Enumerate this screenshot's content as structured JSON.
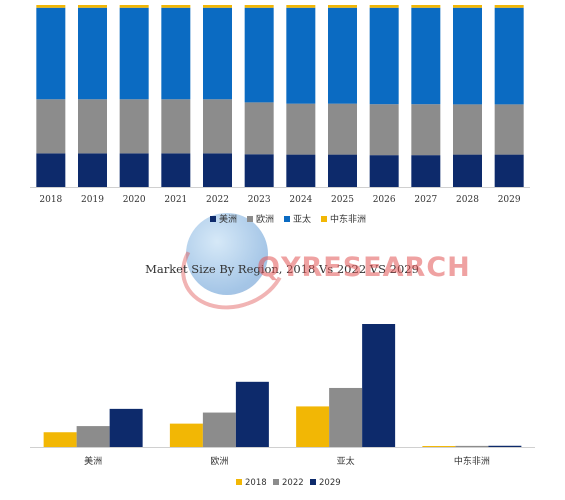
{
  "chart_data": [
    {
      "type": "bar",
      "stacked": true,
      "percent": true,
      "categories": [
        "2018",
        "2019",
        "2020",
        "2021",
        "2022",
        "2023",
        "2024",
        "2025",
        "2026",
        "2027",
        "2028",
        "2029"
      ],
      "series": [
        {
          "name": "美洲",
          "color": "#0d2a6b",
          "values": [
            18.5,
            18.5,
            18.5,
            18.5,
            18.5,
            18,
            17.8,
            17.8,
            17.5,
            17.5,
            17.8,
            17.8
          ]
        },
        {
          "name": "欧洲",
          "color": "#8c8c8c",
          "values": [
            29.7,
            29.7,
            29.7,
            29.7,
            29.7,
            28.5,
            28,
            28,
            28,
            28,
            27.6,
            27.6
          ]
        },
        {
          "name": "亚太",
          "color": "#0b6bc2",
          "values": [
            50.3,
            50.3,
            50.3,
            50.3,
            50.3,
            52,
            52.7,
            52.7,
            53,
            53,
            53.1,
            53.1
          ]
        },
        {
          "name": "中东非洲",
          "color": "#f2b705",
          "values": [
            1.5,
            1.5,
            1.5,
            1.5,
            1.5,
            1.5,
            1.5,
            1.5,
            1.5,
            1.5,
            1.5,
            1.5
          ]
        }
      ],
      "legend_position": "bottom",
      "grid": false
    },
    {
      "type": "bar",
      "title": "Market Size By Region, 2018 Vs 2022 VS 2029",
      "categories": [
        "美洲",
        "欧洲",
        "亚太",
        "中东非洲"
      ],
      "series": [
        {
          "name": "2018",
          "color": "#f2b705",
          "values": [
            12,
            19,
            33,
            0.8
          ]
        },
        {
          "name": "2022",
          "color": "#8c8c8c",
          "values": [
            17,
            28,
            48,
            0.9
          ]
        },
        {
          "name": "2029",
          "color": "#0d2a6b",
          "values": [
            31,
            53,
            100,
            1
          ]
        }
      ],
      "legend_position": "bottom",
      "grid": false
    }
  ],
  "watermark": {
    "text": "QYRESEARCH"
  }
}
